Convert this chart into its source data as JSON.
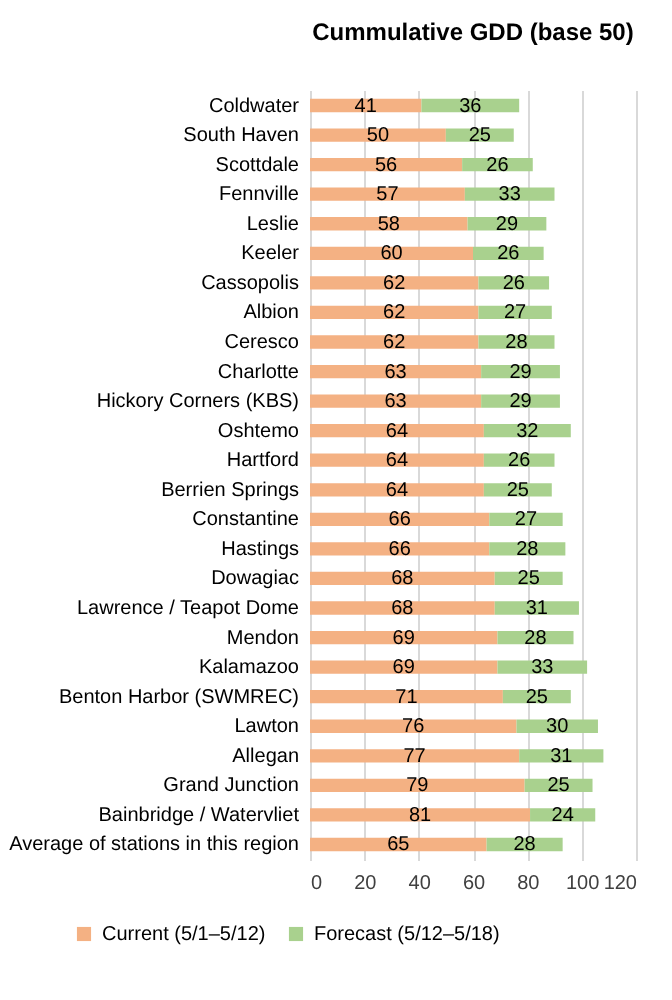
{
  "chart_data": {
    "type": "bar",
    "title": "Cummulative GDD (base 50)",
    "orientation": "horizontal",
    "stacked": true,
    "data_labels": true,
    "grid": "x",
    "legend": "bottom",
    "categories": [
      "Coldwater",
      "South Haven",
      "Scottdale",
      "Fennville",
      "Leslie",
      "Keeler",
      "Cassopolis",
      "Albion",
      "Ceresco",
      "Charlotte",
      "Hickory Corners (KBS)",
      "Oshtemo",
      "Hartford",
      "Berrien Springs",
      "Constantine",
      "Hastings",
      "Dowagiac",
      "Lawrence / Teapot Dome",
      "Mendon",
      "Kalamazoo",
      "Benton Harbor (SWMREC)",
      "Lawton",
      "Allegan",
      "Grand Junction",
      "Bainbridge / Watervliet",
      "Average of stations in this region"
    ],
    "series": [
      {
        "name": "Current (5/1–5/12)",
        "color": "#f4b183",
        "values": [
          41,
          50,
          56,
          57,
          58,
          60,
          62,
          62,
          62,
          63,
          63,
          64,
          64,
          64,
          66,
          66,
          68,
          68,
          69,
          69,
          71,
          76,
          77,
          79,
          81,
          65
        ]
      },
      {
        "name": "Forecast (5/12–5/18)",
        "color": "#a9d18e",
        "values": [
          36,
          25,
          26,
          33,
          29,
          26,
          26,
          27,
          28,
          29,
          29,
          32,
          26,
          25,
          27,
          28,
          25,
          31,
          28,
          33,
          25,
          30,
          31,
          25,
          24,
          28
        ]
      }
    ],
    "xlim": [
      0,
      120
    ],
    "xticks": [
      0,
      20,
      40,
      60,
      80,
      100,
      120
    ]
  }
}
